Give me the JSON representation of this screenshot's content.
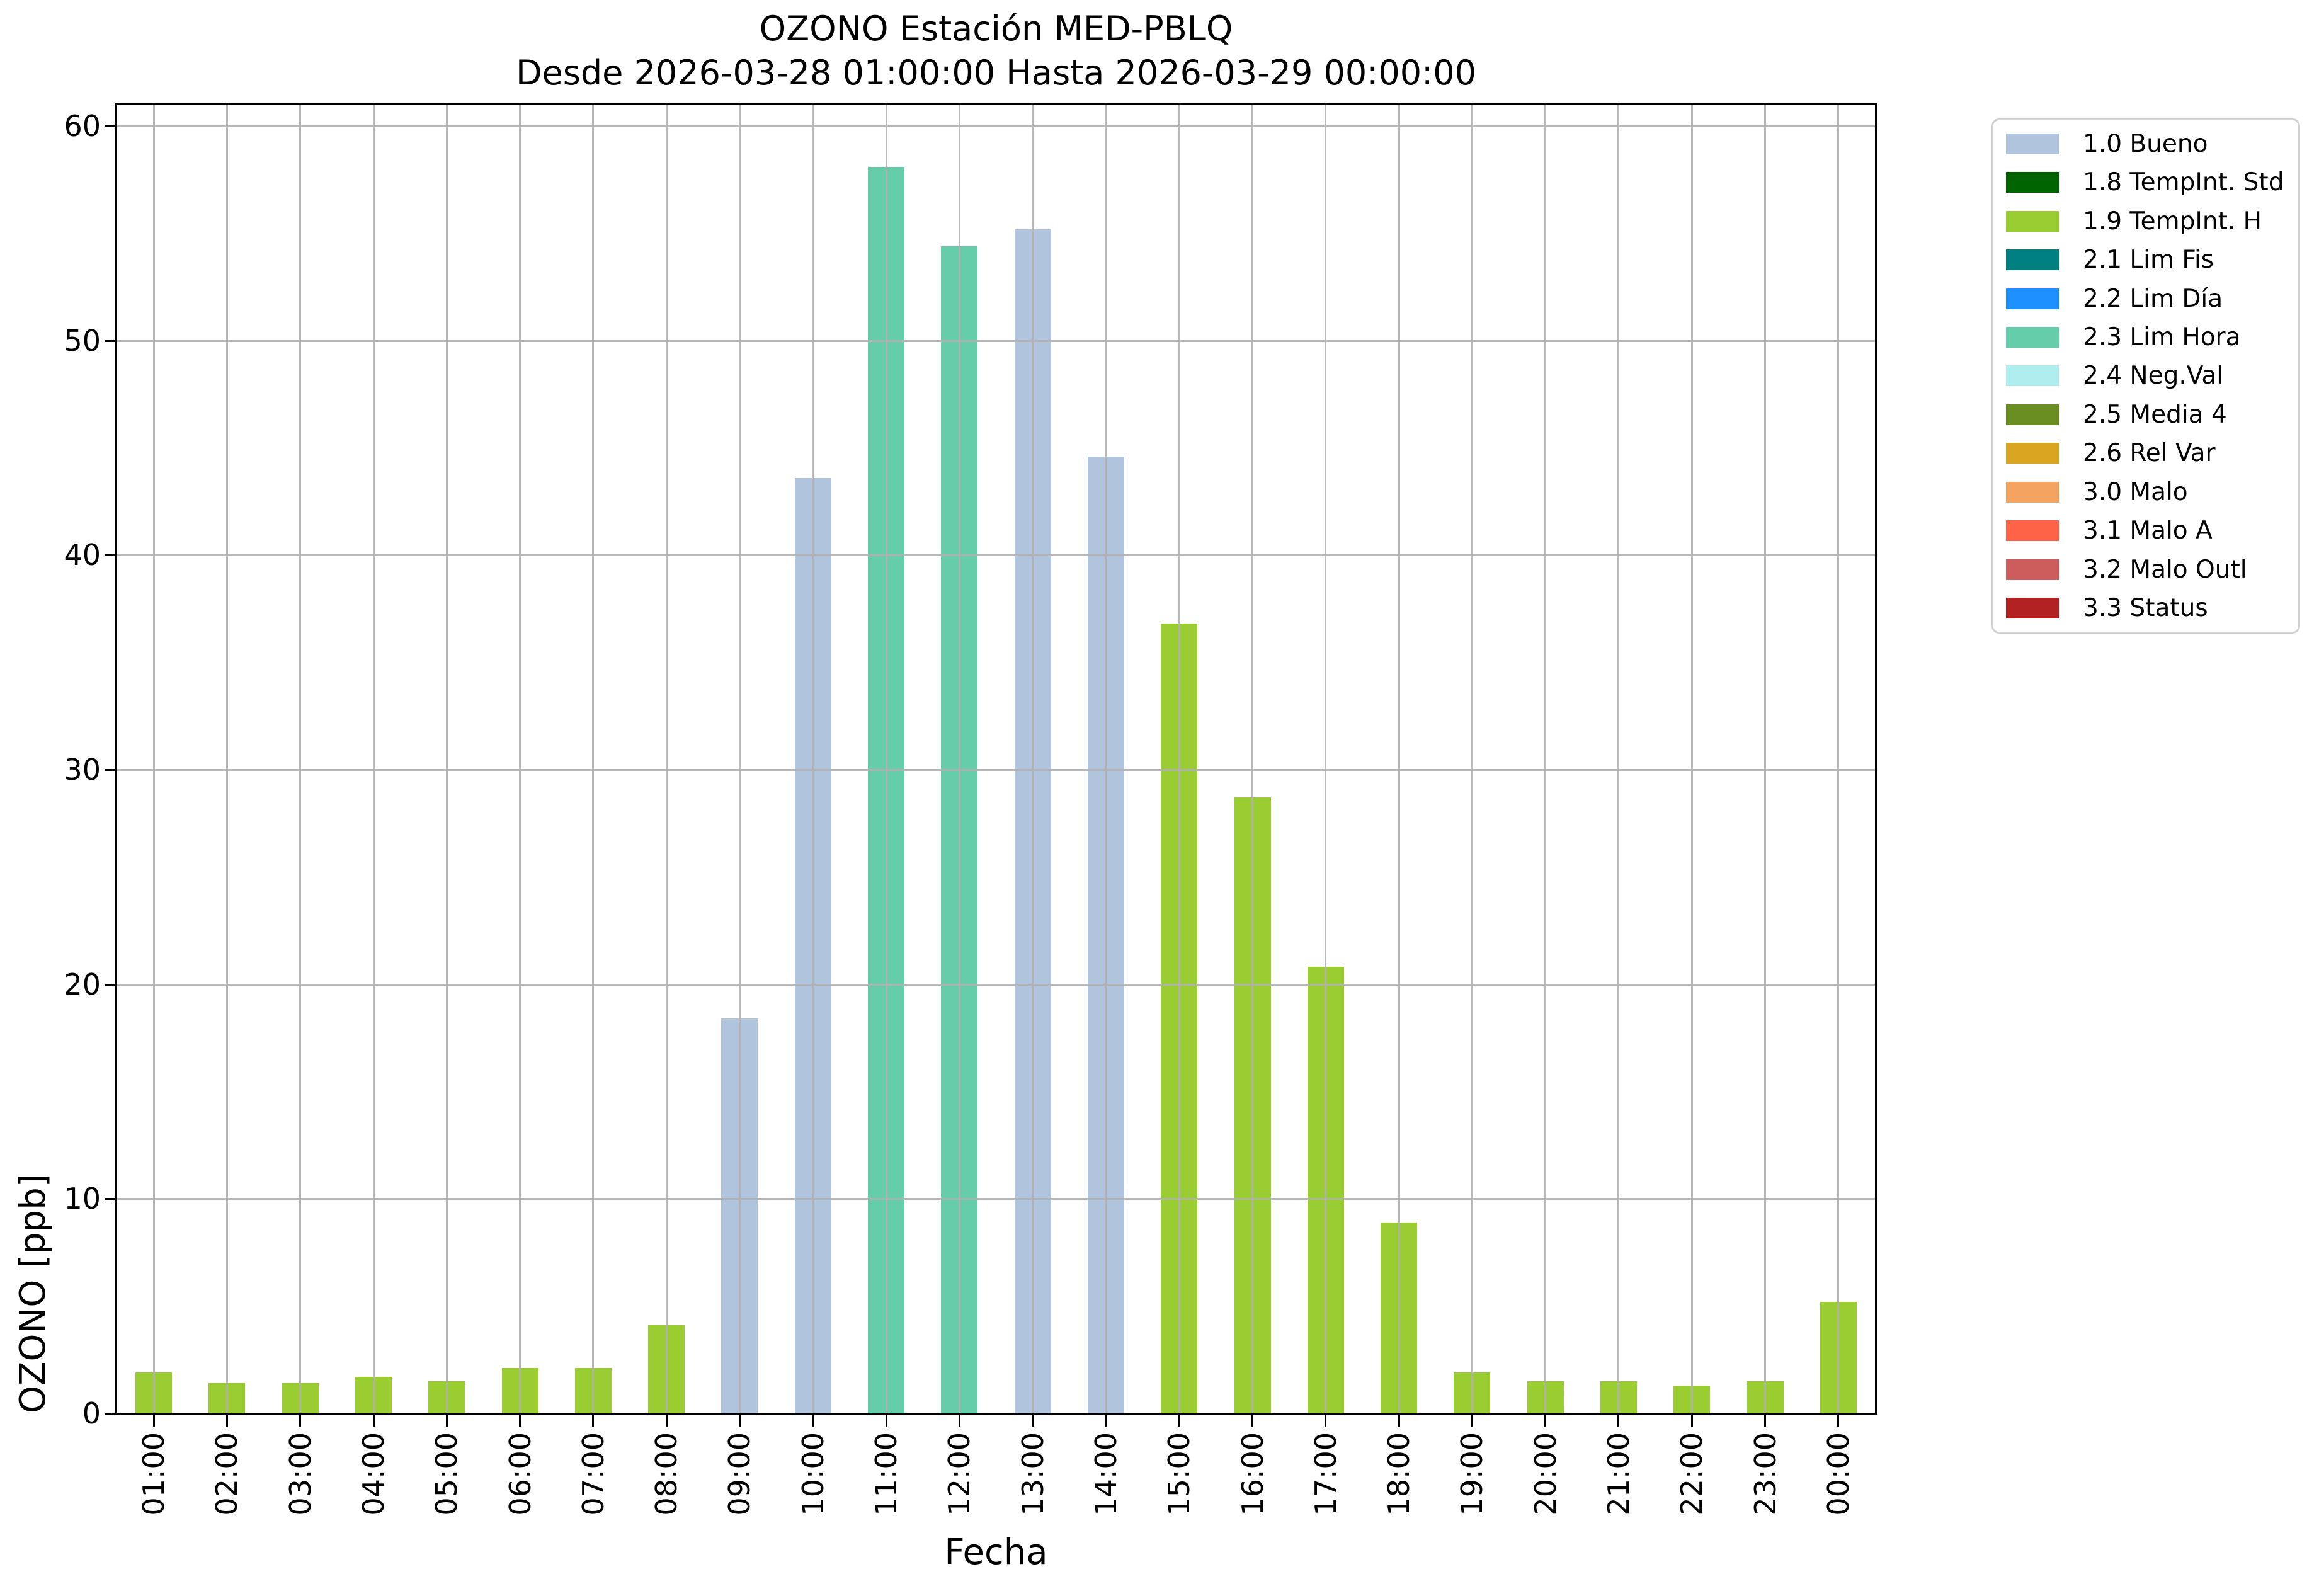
{
  "chart_data": {
    "type": "bar",
    "title": "OZONO Estación MED-PBLQ",
    "subtitle": "Desde 2026-03-28 01:00:00 Hasta 2026-03-29 00:00:00",
    "xlabel": "Fecha",
    "ylabel": "OZONO [ppb]",
    "ylim": [
      0,
      61
    ],
    "yticks": [
      0,
      10,
      20,
      30,
      40,
      50,
      60
    ],
    "grid": true,
    "legend_position": "outside-right-top",
    "categories": [
      "01:00",
      "02:00",
      "03:00",
      "04:00",
      "05:00",
      "06:00",
      "07:00",
      "08:00",
      "09:00",
      "10:00",
      "11:00",
      "12:00",
      "13:00",
      "14:00",
      "15:00",
      "16:00",
      "17:00",
      "18:00",
      "19:00",
      "20:00",
      "21:00",
      "22:00",
      "23:00",
      "00:00"
    ],
    "values": [
      1.9,
      1.4,
      1.4,
      1.7,
      1.5,
      2.1,
      2.1,
      4.1,
      18.4,
      43.6,
      58.1,
      54.4,
      55.2,
      44.6,
      36.8,
      28.7,
      20.8,
      8.9,
      1.9,
      1.5,
      1.5,
      1.3,
      1.5,
      5.2
    ],
    "bar_flags": [
      "1.9 TempInt. H",
      "1.9 TempInt. H",
      "1.9 TempInt. H",
      "1.9 TempInt. H",
      "1.9 TempInt. H",
      "1.9 TempInt. H",
      "1.9 TempInt. H",
      "1.9 TempInt. H",
      "1.0 Bueno",
      "1.0 Bueno",
      "2.3 Lim Hora",
      "2.3 Lim Hora",
      "1.0 Bueno",
      "1.0 Bueno",
      "1.9 TempInt. H",
      "1.9 TempInt. H",
      "1.9 TempInt. H",
      "1.9 TempInt. H",
      "1.9 TempInt. H",
      "1.9 TempInt. H",
      "1.9 TempInt. H",
      "1.9 TempInt. H",
      "1.9 TempInt. H",
      "1.9 TempInt. H"
    ],
    "legend_items": [
      {
        "label": "1.0 Bueno",
        "color": "#b0c4de"
      },
      {
        "label": "1.8 TempInt. Std",
        "color": "#006400"
      },
      {
        "label": "1.9 TempInt. H",
        "color": "#9acd32"
      },
      {
        "label": "2.1 Lim Fis",
        "color": "#008080"
      },
      {
        "label": "2.2 Lim Día",
        "color": "#1e90ff"
      },
      {
        "label": "2.3 Lim Hora",
        "color": "#66cdaa"
      },
      {
        "label": "2.4 Neg.Val",
        "color": "#afeeee"
      },
      {
        "label": "2.5 Media 4",
        "color": "#6b8e23"
      },
      {
        "label": "2.6 Rel Var",
        "color": "#daa520"
      },
      {
        "label": "3.0 Malo",
        "color": "#f4a460"
      },
      {
        "label": "3.1 Malo A",
        "color": "#ff6347"
      },
      {
        "label": "3.2 Malo Outl",
        "color": "#cd5c5c"
      },
      {
        "label": "3.3 Status",
        "color": "#b22222"
      }
    ]
  }
}
